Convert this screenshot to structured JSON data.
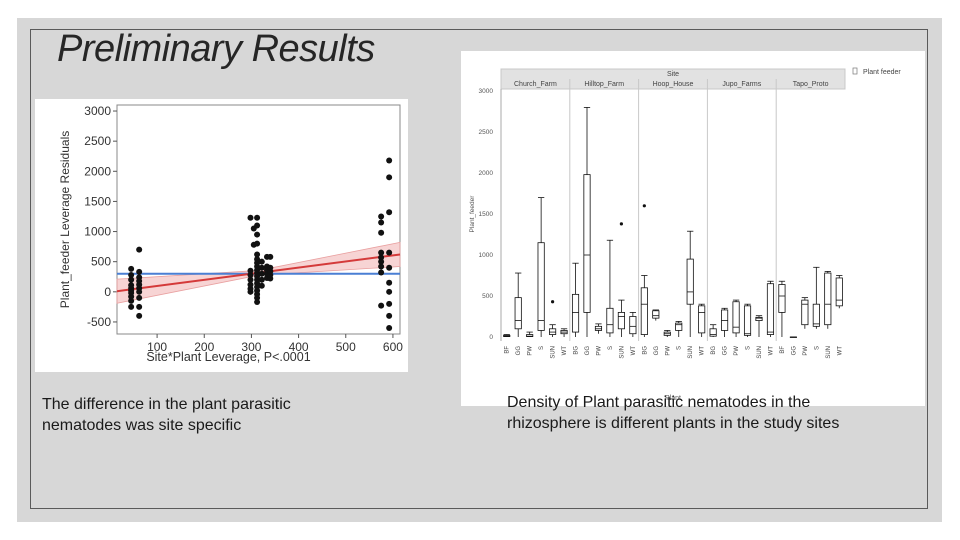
{
  "slide": {
    "title": "Preliminary Results",
    "caption_left": "The difference in the plant parasitic nematodes was site specific",
    "caption_right": "Density of Plant parasitic nematodes in the rhizosphere is different plants in the study sites"
  },
  "chart_data": [
    {
      "type": "scatter",
      "title": "",
      "xlabel": "Site*Plant Leverage, P<.0001",
      "ylabel": "Plant_feeder Leverage Residuals",
      "xlim": [
        15,
        615
      ],
      "ylim": [
        -700,
        3100
      ],
      "xticks": [
        "100",
        "200",
        "300",
        "400",
        "500",
        "600"
      ],
      "yticks": [
        "3000",
        "2500",
        "2000",
        "1500",
        "1000",
        "500",
        "0",
        "-500"
      ],
      "grid": false,
      "mean_line": {
        "y": 300,
        "color": "#4a7fd4"
      },
      "fit_line": {
        "x": [
          15,
          615
        ],
        "y": [
          10,
          620
        ],
        "color": "#d43a3a"
      },
      "points": [
        {
          "x": 45,
          "y": -250
        },
        {
          "x": 45,
          "y": -150
        },
        {
          "x": 45,
          "y": -80
        },
        {
          "x": 45,
          "y": -20
        },
        {
          "x": 45,
          "y": 20
        },
        {
          "x": 45,
          "y": 60
        },
        {
          "x": 45,
          "y": 110
        },
        {
          "x": 45,
          "y": 200
        },
        {
          "x": 45,
          "y": 280
        },
        {
          "x": 45,
          "y": 380
        },
        {
          "x": 62,
          "y": -400
        },
        {
          "x": 62,
          "y": -250
        },
        {
          "x": 62,
          "y": -100
        },
        {
          "x": 62,
          "y": 0
        },
        {
          "x": 62,
          "y": 60
        },
        {
          "x": 62,
          "y": 120
        },
        {
          "x": 62,
          "y": 180
        },
        {
          "x": 62,
          "y": 240
        },
        {
          "x": 62,
          "y": 330
        },
        {
          "x": 62,
          "y": 700
        },
        {
          "x": 298,
          "y": 0
        },
        {
          "x": 298,
          "y": 50
        },
        {
          "x": 298,
          "y": 120
        },
        {
          "x": 298,
          "y": 200
        },
        {
          "x": 298,
          "y": 280
        },
        {
          "x": 298,
          "y": 350
        },
        {
          "x": 298,
          "y": 1230
        },
        {
          "x": 305,
          "y": 1050
        },
        {
          "x": 305,
          "y": 780
        },
        {
          "x": 312,
          "y": -170
        },
        {
          "x": 312,
          "y": -100
        },
        {
          "x": 312,
          "y": -40
        },
        {
          "x": 312,
          "y": 20
        },
        {
          "x": 312,
          "y": 80
        },
        {
          "x": 312,
          "y": 140
        },
        {
          "x": 312,
          "y": 200
        },
        {
          "x": 312,
          "y": 260
        },
        {
          "x": 312,
          "y": 310
        },
        {
          "x": 312,
          "y": 360
        },
        {
          "x": 312,
          "y": 420
        },
        {
          "x": 312,
          "y": 480
        },
        {
          "x": 312,
          "y": 540
        },
        {
          "x": 312,
          "y": 620
        },
        {
          "x": 312,
          "y": 800
        },
        {
          "x": 312,
          "y": 950
        },
        {
          "x": 312,
          "y": 1100
        },
        {
          "x": 312,
          "y": 1230
        },
        {
          "x": 322,
          "y": 100
        },
        {
          "x": 322,
          "y": 200
        },
        {
          "x": 322,
          "y": 300
        },
        {
          "x": 322,
          "y": 400
        },
        {
          "x": 322,
          "y": 500
        },
        {
          "x": 333,
          "y": 230
        },
        {
          "x": 333,
          "y": 300
        },
        {
          "x": 333,
          "y": 360
        },
        {
          "x": 333,
          "y": 420
        },
        {
          "x": 333,
          "y": 580
        },
        {
          "x": 340,
          "y": 220
        },
        {
          "x": 340,
          "y": 280
        },
        {
          "x": 340,
          "y": 340
        },
        {
          "x": 340,
          "y": 400
        },
        {
          "x": 340,
          "y": 580
        },
        {
          "x": 575,
          "y": -230
        },
        {
          "x": 575,
          "y": 320
        },
        {
          "x": 575,
          "y": 420
        },
        {
          "x": 575,
          "y": 500
        },
        {
          "x": 575,
          "y": 570
        },
        {
          "x": 575,
          "y": 650
        },
        {
          "x": 575,
          "y": 980
        },
        {
          "x": 575,
          "y": 1150
        },
        {
          "x": 575,
          "y": 1250
        },
        {
          "x": 592,
          "y": -600
        },
        {
          "x": 592,
          "y": -400
        },
        {
          "x": 592,
          "y": -200
        },
        {
          "x": 592,
          "y": 0
        },
        {
          "x": 592,
          "y": 150
        },
        {
          "x": 592,
          "y": 400
        },
        {
          "x": 592,
          "y": 650
        },
        {
          "x": 592,
          "y": 1320
        },
        {
          "x": 592,
          "y": 1900
        },
        {
          "x": 592,
          "y": 2180
        }
      ]
    },
    {
      "type": "box",
      "title": "Site",
      "xlabel": "Plant",
      "ylabel": "Plant_feeder",
      "ylim": [
        -50,
        3050
      ],
      "yticks": [
        "3000",
        "2500",
        "2000",
        "1500",
        "1000",
        "500",
        "0"
      ],
      "grid": false,
      "legend": {
        "placement": "top-right",
        "label": "Plant feeder"
      },
      "groups": [
        {
          "site": "Church_Farm",
          "plants": [
            "BF",
            "GG",
            "PW",
            "S",
            "SUN",
            "WT"
          ]
        },
        {
          "site": "Hilltop_Farm",
          "plants": [
            "BG",
            "GG",
            "PW",
            "S",
            "SUN",
            "WT"
          ]
        },
        {
          "site": "Hoop_House",
          "plants": [
            "BG",
            "GG",
            "PW",
            "S",
            "SUN",
            "WT"
          ]
        },
        {
          "site": "Jupo_Farms",
          "plants": [
            "BG",
            "GG",
            "PW",
            "S",
            "SUN",
            "WT"
          ]
        },
        {
          "site": "Tapo_Proto",
          "plants": [
            "BF",
            "GG",
            "PW",
            "S",
            "SUN",
            "WT"
          ]
        }
      ],
      "boxes": [
        {
          "min": 0,
          "q1": 5,
          "median": 10,
          "q3": 20,
          "max": 30
        },
        {
          "min": 0,
          "q1": 100,
          "median": 200,
          "q3": 480,
          "max": 780
        },
        {
          "min": 0,
          "q1": 5,
          "median": 10,
          "q3": 30,
          "max": 60
        },
        {
          "min": 0,
          "q1": 80,
          "median": 200,
          "q3": 1150,
          "max": 1700
        },
        {
          "min": 0,
          "q1": 30,
          "median": 60,
          "q3": 100,
          "max": 150,
          "outliers": [
            430
          ]
        },
        {
          "min": 0,
          "q1": 40,
          "median": 60,
          "q3": 80,
          "max": 100
        },
        {
          "min": 0,
          "q1": 60,
          "median": 300,
          "q3": 520,
          "max": 900
        },
        {
          "min": 0,
          "q1": 300,
          "median": 1000,
          "q3": 1980,
          "max": 2800
        },
        {
          "min": 40,
          "q1": 80,
          "median": 100,
          "q3": 130,
          "max": 160
        },
        {
          "min": 0,
          "q1": 50,
          "median": 150,
          "q3": 350,
          "max": 1180
        },
        {
          "min": 0,
          "q1": 100,
          "median": 250,
          "q3": 300,
          "max": 450,
          "outliers": [
            1380
          ]
        },
        {
          "min": 0,
          "q1": 40,
          "median": 130,
          "q3": 250,
          "max": 300
        },
        {
          "min": 0,
          "q1": 30,
          "median": 400,
          "q3": 600,
          "max": 750,
          "outliers": [
            1600
          ]
        },
        {
          "min": 200,
          "q1": 230,
          "median": 260,
          "q3": 320,
          "max": 330
        },
        {
          "min": 0,
          "q1": 20,
          "median": 40,
          "q3": 60,
          "max": 80
        },
        {
          "min": 0,
          "q1": 80,
          "median": 150,
          "q3": 170,
          "max": 190
        },
        {
          "min": 0,
          "q1": 400,
          "median": 550,
          "q3": 950,
          "max": 1290
        },
        {
          "min": 0,
          "q1": 50,
          "median": 300,
          "q3": 380,
          "max": 400
        },
        {
          "min": 0,
          "q1": 10,
          "median": 30,
          "q3": 100,
          "max": 150
        },
        {
          "min": 0,
          "q1": 80,
          "median": 200,
          "q3": 330,
          "max": 350
        },
        {
          "min": 0,
          "q1": 50,
          "median": 120,
          "q3": 430,
          "max": 450
        },
        {
          "min": 0,
          "q1": 20,
          "median": 40,
          "q3": 380,
          "max": 400
        },
        {
          "min": 0,
          "q1": 200,
          "median": 230,
          "q3": 240,
          "max": 260
        },
        {
          "min": 0,
          "q1": 30,
          "median": 60,
          "q3": 650,
          "max": 680
        },
        {
          "min": 0,
          "q1": 300,
          "median": 500,
          "q3": 640,
          "max": 680
        },
        {
          "min": 0,
          "q1": 0,
          "median": 0,
          "q3": 0,
          "max": 0
        },
        {
          "min": 100,
          "q1": 150,
          "median": 400,
          "q3": 450,
          "max": 480
        },
        {
          "min": 100,
          "q1": 130,
          "median": 160,
          "q3": 400,
          "max": 850
        },
        {
          "min": 100,
          "q1": 150,
          "median": 400,
          "q3": 780,
          "max": 800
        },
        {
          "min": 350,
          "q1": 380,
          "median": 450,
          "q3": 720,
          "max": 750
        }
      ]
    }
  ]
}
